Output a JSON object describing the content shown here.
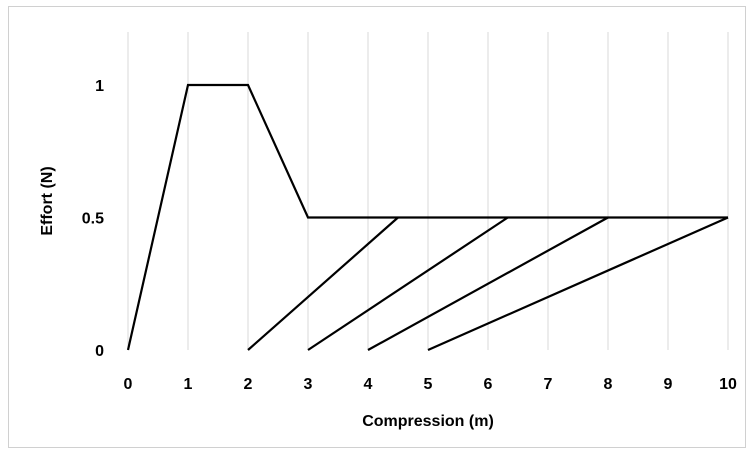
{
  "chart_data": {
    "type": "line",
    "title": "",
    "xlabel": "Compression (m)",
    "ylabel": "Effort (N)",
    "xlim": [
      0,
      10
    ],
    "ylim": [
      0,
      1.2
    ],
    "x_ticks": [
      0,
      1,
      2,
      3,
      4,
      5,
      6,
      7,
      8,
      9,
      10
    ],
    "y_ticks": [
      0,
      0.5,
      1
    ],
    "x_tick_labels": [
      "0",
      "1",
      "2",
      "3",
      "4",
      "5",
      "6",
      "7",
      "8",
      "9",
      "10"
    ],
    "y_tick_labels": [
      "0",
      "0.5",
      "1"
    ],
    "grid": {
      "vertical": true,
      "horizontal": false
    },
    "legend": "none",
    "line_color": "#000000",
    "grid_color": "#d9d9d9",
    "series": [
      {
        "x": [
          0,
          1,
          2,
          3,
          10
        ],
        "y": [
          0,
          1,
          1,
          0.5,
          0.5
        ]
      },
      {
        "x": [
          2,
          4.5
        ],
        "y": [
          0,
          0.5
        ]
      },
      {
        "x": [
          3,
          6.33
        ],
        "y": [
          0,
          0.5
        ]
      },
      {
        "x": [
          4,
          8
        ],
        "y": [
          0,
          0.5
        ]
      },
      {
        "x": [
          5,
          10
        ],
        "y": [
          0,
          0.5
        ]
      }
    ]
  }
}
